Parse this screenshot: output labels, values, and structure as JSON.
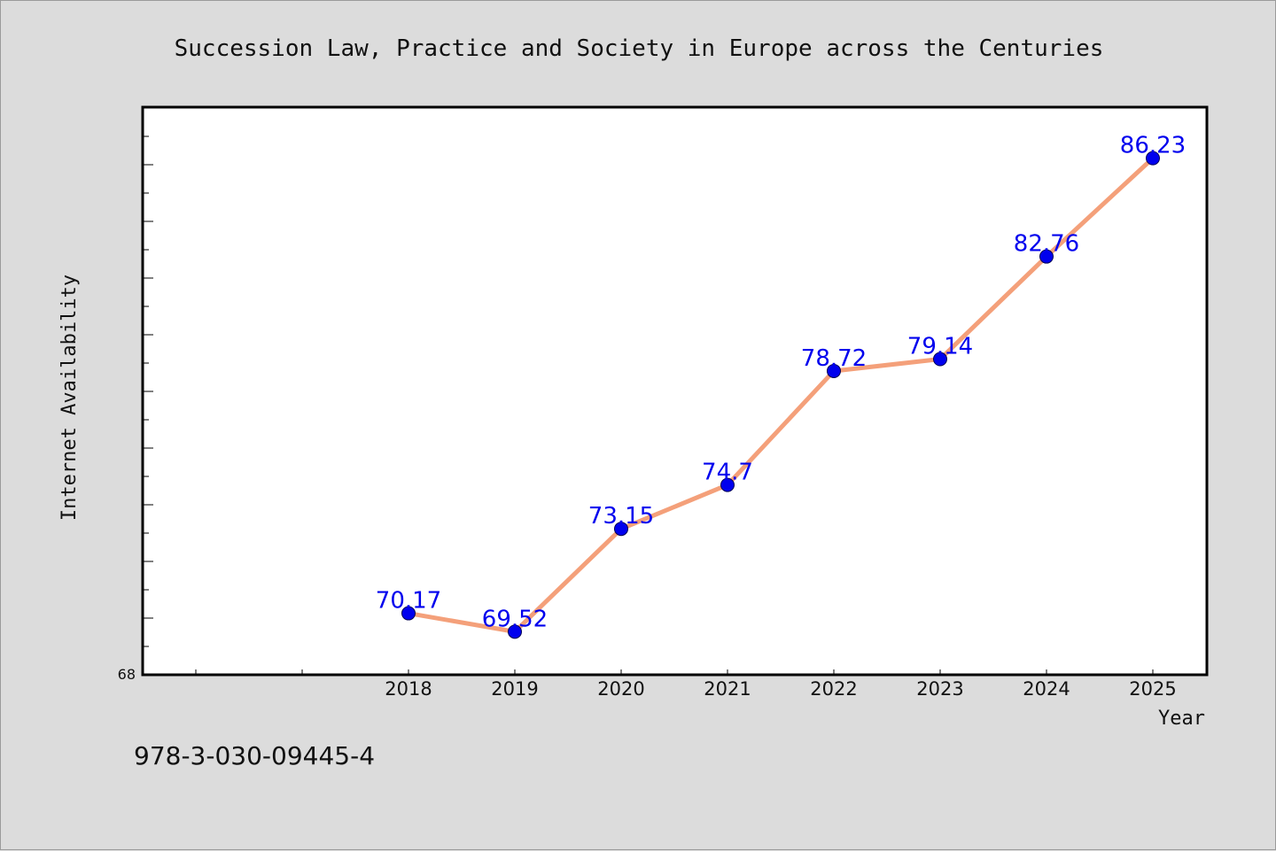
{
  "chart_data": {
    "type": "line",
    "title": "Succession Law, Practice and Society in Europe across the Centuries",
    "xlabel": "Year",
    "ylabel": "Internet Availability",
    "categories": [
      "2018",
      "2019",
      "2020",
      "2021",
      "2022",
      "2023",
      "2024",
      "2025"
    ],
    "series": [
      {
        "values": [
          70.17,
          69.52,
          73.15,
          74.7,
          78.72,
          79.14,
          82.76,
          86.23
        ],
        "data_labels": [
          "70.17",
          "69.52",
          "73.15",
          "74.7",
          "78.72",
          "79.14",
          "82.76",
          "86.23"
        ],
        "line_color": "#f4a07a",
        "marker_color": "#0000ee"
      }
    ],
    "ylim": [
      68,
      88
    ],
    "y_tick_label_shown": "68",
    "grid": false,
    "legend": "none"
  },
  "footer": {
    "isbn": "978-3-030-09445-4"
  },
  "colors": {
    "background": "#dcdcdc",
    "plot_background": "#ffffff",
    "axis": "#000000",
    "line": "#f4a07a",
    "marker": "#0000ee",
    "data_label": "#0000ee"
  }
}
